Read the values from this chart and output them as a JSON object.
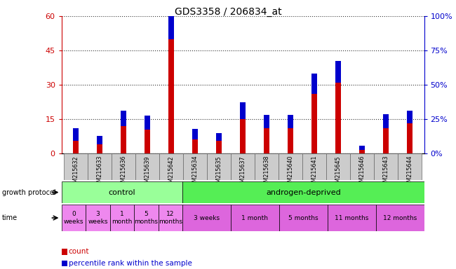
{
  "title": "GDS3358 / 206834_at",
  "samples": [
    "GSM215632",
    "GSM215633",
    "GSM215636",
    "GSM215639",
    "GSM215642",
    "GSM215634",
    "GSM215635",
    "GSM215637",
    "GSM215638",
    "GSM215640",
    "GSM215641",
    "GSM215645",
    "GSM215646",
    "GSM215643",
    "GSM215644"
  ],
  "count": [
    5.5,
    4.0,
    12.0,
    10.5,
    50.0,
    6.0,
    5.5,
    15.0,
    11.0,
    11.0,
    26.0,
    31.0,
    1.5,
    11.0,
    13.0
  ],
  "percentile": [
    9.0,
    6.0,
    11.0,
    10.0,
    27.0,
    8.0,
    5.5,
    12.0,
    9.5,
    9.5,
    15.0,
    15.5,
    3.0,
    10.0,
    9.5
  ],
  "count_color": "#cc0000",
  "percentile_color": "#0000cc",
  "ylim_left": [
    0,
    60
  ],
  "ylim_right": [
    0,
    100
  ],
  "yticks_left": [
    0,
    15,
    30,
    45,
    60
  ],
  "yticks_right": [
    0,
    25,
    50,
    75,
    100
  ],
  "ytick_labels_left": [
    "0",
    "15",
    "30",
    "45",
    "60"
  ],
  "ytick_labels_right": [
    "0%",
    "25%",
    "50%",
    "75%",
    "100%"
  ],
  "left_tick_color": "#cc0000",
  "right_tick_color": "#0000cc",
  "protocol_groups": [
    {
      "label": "control",
      "start": 0,
      "end": 5,
      "color": "#99ff99"
    },
    {
      "label": "androgen-deprived",
      "start": 5,
      "end": 15,
      "color": "#55ee55"
    }
  ],
  "time_groups": [
    {
      "label": "0\nweeks",
      "start": 0,
      "end": 1
    },
    {
      "label": "3\nweeks",
      "start": 1,
      "end": 2
    },
    {
      "label": "1\nmonth",
      "start": 2,
      "end": 3
    },
    {
      "label": "5\nmonths",
      "start": 3,
      "end": 4
    },
    {
      "label": "12\nmonths",
      "start": 4,
      "end": 5
    },
    {
      "label": "3 weeks",
      "start": 5,
      "end": 7
    },
    {
      "label": "1 month",
      "start": 7,
      "end": 9
    },
    {
      "label": "5 months",
      "start": 9,
      "end": 11
    },
    {
      "label": "11 months",
      "start": 11,
      "end": 13
    },
    {
      "label": "12 months",
      "start": 13,
      "end": 15
    }
  ],
  "time_colors": [
    "#ee88ee",
    "#ee88ee",
    "#ee88ee",
    "#ee88ee",
    "#ee88ee",
    "#dd66dd",
    "#dd66dd",
    "#dd66dd",
    "#dd66dd",
    "#dd66dd"
  ],
  "bar_width": 0.25,
  "grid_style": "dotted",
  "grid_color": "#333333",
  "sample_bg_color": "#cccccc",
  "title_fontsize": 10
}
